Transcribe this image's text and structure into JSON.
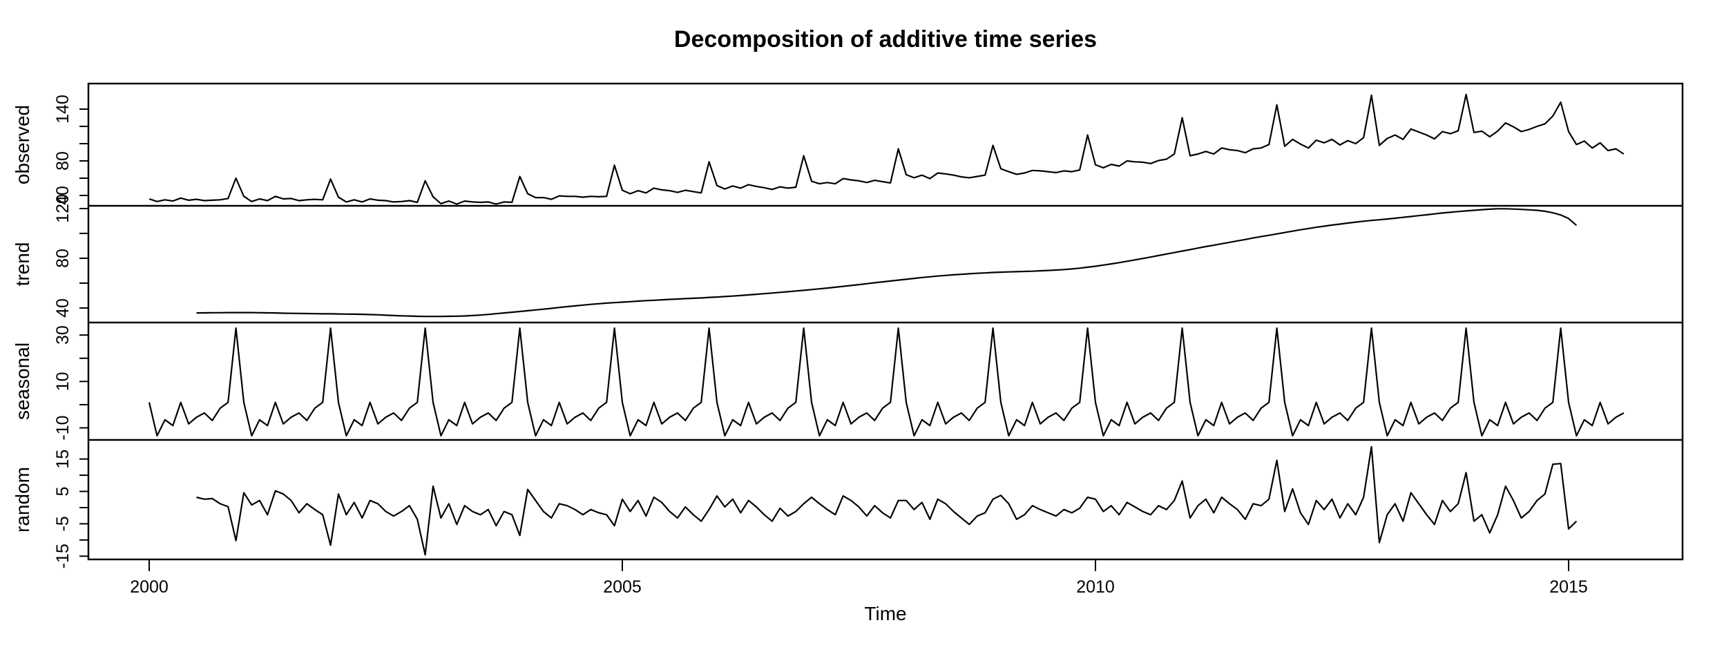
{
  "title": "Decomposition of additive time series",
  "colors": {
    "background": "#ffffff",
    "line": "#000000"
  },
  "x_axis": {
    "label": "Time",
    "ticks": [
      2000,
      2005,
      2010,
      2015
    ]
  },
  "chart_data": {
    "type": "line",
    "frequency": 12,
    "x_start": 2000.0,
    "x_end": 2015.583,
    "panels": [
      {
        "name": "observed",
        "start": 2000.0,
        "ylim": [
          28,
          169.6
        ],
        "tick_values": [
          40,
          60,
          80,
          100,
          120,
          140
        ],
        "labeled_ticks": [
          40,
          80,
          140
        ],
        "values": [
          36,
          33,
          35,
          33.5,
          37,
          34.5,
          35.5,
          34,
          34.5,
          35,
          36.5,
          60,
          39,
          33,
          36,
          34,
          39,
          36,
          36.5,
          34,
          35,
          35.5,
          35,
          59,
          38,
          32.5,
          35,
          32.5,
          36,
          34.5,
          34,
          32.5,
          33,
          34,
          32,
          57,
          38.5,
          30.5,
          33.5,
          30,
          33.5,
          32.5,
          32,
          32.5,
          30,
          32.5,
          32,
          62,
          42,
          37.5,
          37.5,
          35.5,
          39.5,
          39,
          39,
          38,
          39,
          38.5,
          39,
          75,
          46,
          42,
          45.5,
          43,
          48.5,
          46.5,
          45.5,
          43.5,
          46,
          44.5,
          43,
          79,
          51.5,
          47.5,
          51,
          48.5,
          52.5,
          50.5,
          49,
          47,
          50,
          48.5,
          49.5,
          86,
          56.5,
          53.5,
          55,
          53.5,
          59.5,
          58,
          57,
          55,
          57.5,
          56,
          54.5,
          94,
          64,
          60.5,
          63.5,
          59.5,
          66,
          65,
          63.5,
          61.5,
          60.5,
          62,
          63.5,
          98,
          71,
          67.5,
          64.5,
          66,
          69,
          68.5,
          67.5,
          66.5,
          68.5,
          67.5,
          69.5,
          110,
          75.5,
          72,
          76,
          74,
          80,
          79,
          78.5,
          77,
          80.5,
          82,
          88,
          130,
          86,
          88,
          91,
          88,
          95,
          93,
          92,
          89.5,
          94,
          95,
          99,
          145,
          97,
          105,
          99.5,
          95,
          104,
          101,
          105,
          98.5,
          103.5,
          100,
          107,
          156,
          98,
          106,
          110,
          105,
          117,
          113.5,
          110,
          105.5,
          114,
          111.5,
          115,
          157,
          113,
          114.5,
          108,
          114.5,
          124,
          119.5,
          114,
          116.5,
          120,
          123,
          132,
          148,
          114,
          99,
          103,
          95,
          101,
          92,
          94,
          88
        ]
      },
      {
        "name": "trend",
        "start": 2000.5,
        "ylim": [
          28.3,
          122.2
        ],
        "tick_values": [
          40,
          60,
          80,
          100,
          120
        ],
        "labeled_ticks": [
          40,
          80,
          120
        ],
        "values": [
          36.0,
          36.1,
          36.2,
          36.2,
          36.3,
          36.3,
          36.3,
          36.3,
          36.2,
          36.1,
          36.0,
          35.8,
          35.7,
          35.6,
          35.5,
          35.4,
          35.3,
          35.3,
          35.2,
          35.1,
          35.0,
          34.9,
          34.7,
          34.5,
          34.2,
          33.9,
          33.7,
          33.5,
          33.3,
          33.2,
          33.2,
          33.2,
          33.3,
          33.4,
          33.6,
          33.9,
          34.3,
          34.8,
          35.4,
          36.0,
          36.6,
          37.2,
          37.8,
          38.4,
          39.0,
          39.7,
          40.4,
          41.1,
          41.7,
          42.3,
          42.9,
          43.4,
          43.9,
          44.3,
          44.7,
          45.1,
          45.5,
          45.9,
          46.2,
          46.6,
          46.9,
          47.2,
          47.5,
          47.8,
          48.1,
          48.5,
          48.8,
          49.2,
          49.6,
          50.0,
          50.5,
          51.0,
          51.5,
          52.0,
          52.6,
          53.1,
          53.7,
          54.2,
          54.8,
          55.4,
          56.0,
          56.7,
          57.4,
          58.1,
          58.8,
          59.5,
          60.3,
          61.0,
          61.7,
          62.4,
          63.1,
          63.8,
          64.5,
          65.1,
          65.7,
          66.2,
          66.7,
          67.1,
          67.5,
          67.9,
          68.2,
          68.6,
          68.8,
          69.0,
          69.2,
          69.4,
          69.6,
          69.9,
          70.2,
          70.5,
          70.9,
          71.4,
          72.0,
          72.8,
          73.6,
          74.5,
          75.5,
          76.5,
          77.6,
          78.7,
          79.8,
          81.0,
          82.2,
          83.4,
          84.6,
          85.8,
          87.0,
          88.2,
          89.4,
          90.5,
          91.7,
          92.8,
          94.0,
          95.1,
          96.3,
          97.4,
          98.5,
          99.6,
          100.7,
          101.8,
          102.9,
          103.9,
          104.9,
          105.8,
          106.7,
          107.5,
          108.3,
          109.1,
          109.8,
          110.4,
          111.0,
          111.6,
          112.2,
          112.9,
          113.6,
          114.3,
          115.0,
          115.7,
          116.4,
          117.0,
          117.6,
          118.1,
          118.6,
          119.1,
          119.5,
          119.8,
          119.8,
          119.6,
          119.3,
          119.0,
          118.6,
          117.8,
          116.6,
          114.8,
          112.0,
          106.5
        ]
      },
      {
        "name": "seasonal",
        "start": 2000.0,
        "ylim": [
          -15.2,
          35.4
        ],
        "tick_values": [
          -10,
          0,
          10,
          20,
          30
        ],
        "labeled_ticks": [
          -10,
          10,
          30
        ],
        "pattern": [
          1,
          -13.4,
          -6.5,
          -9,
          1,
          -8.3,
          -5.4,
          -3.6,
          -6.8,
          -1.5,
          1,
          33
        ],
        "n_points": 188
      },
      {
        "name": "random",
        "start": 2000.5,
        "ylim": [
          -16,
          20.9
        ],
        "tick_values": [
          -15,
          -10,
          -5,
          0,
          5,
          10,
          15
        ],
        "labeled_ticks": [
          -15,
          -5,
          5,
          15
        ],
        "values": [
          3.2,
          2.6,
          2.8,
          1.2,
          0.3,
          -10.2,
          4.6,
          0.8,
          2.2,
          -2.2,
          5.2,
          4.2,
          2.2,
          -1.6,
          1.2,
          -0.6,
          -2.2,
          -11.6,
          4.2,
          -2.2,
          1.6,
          -3.2,
          2.2,
          1.2,
          -1.2,
          -2.6,
          -1.2,
          0.6,
          -3.6,
          -14.6,
          6.6,
          -3.2,
          1.2,
          -5.2,
          0.6,
          -1.2,
          -2.2,
          -0.6,
          -5.6,
          -1.2,
          -2.2,
          -8.6,
          5.6,
          2.2,
          -1.2,
          -3.2,
          1.2,
          0.6,
          -0.6,
          -2.2,
          -0.6,
          -1.6,
          -2.2,
          -5.6,
          2.6,
          -1.2,
          2.2,
          -2.6,
          3.2,
          1.6,
          -1.2,
          -3.2,
          0.2,
          -2.2,
          -4.2,
          -0.6,
          3.6,
          0.2,
          2.6,
          -1.6,
          2.2,
          0.2,
          -2.2,
          -4.2,
          -0.2,
          -2.6,
          -1.2,
          1.2,
          3.2,
          1.2,
          -0.6,
          -2.2,
          3.6,
          2.2,
          0.2,
          -2.6,
          0.6,
          -1.6,
          -3.2,
          2.2,
          2.2,
          -0.6,
          1.6,
          -3.6,
          2.6,
          1.2,
          -1.2,
          -3.2,
          -5.2,
          -2.6,
          -1.6,
          2.6,
          3.8,
          1.2,
          -3.6,
          -2.2,
          0.6,
          -0.6,
          -1.6,
          -2.6,
          -0.6,
          -1.6,
          -0.2,
          3.2,
          2.6,
          -1.2,
          0.6,
          -2.2,
          1.6,
          0.2,
          -1.2,
          -2.2,
          0.6,
          -0.6,
          2.2,
          8.2,
          -3.2,
          0.6,
          2.6,
          -1.6,
          3.2,
          1.2,
          -0.6,
          -3.6,
          1.2,
          0.6,
          2.6,
          14.6,
          -1.2,
          5.8,
          -1.6,
          -5.2,
          2.2,
          -0.6,
          2.6,
          -3.2,
          1.2,
          -2.2,
          3.2,
          18.8,
          -10.8,
          -2.2,
          1.2,
          -4.2,
          4.6,
          1.2,
          -2.2,
          -5.2,
          2.2,
          -1.2,
          1.2,
          10.8,
          -4.2,
          -2.2,
          -7.8,
          -2.2,
          6.6,
          2.2,
          -3.2,
          -1.2,
          2.2,
          4.2,
          13.4,
          13.6,
          -6.6,
          -4.2
        ]
      }
    ]
  }
}
